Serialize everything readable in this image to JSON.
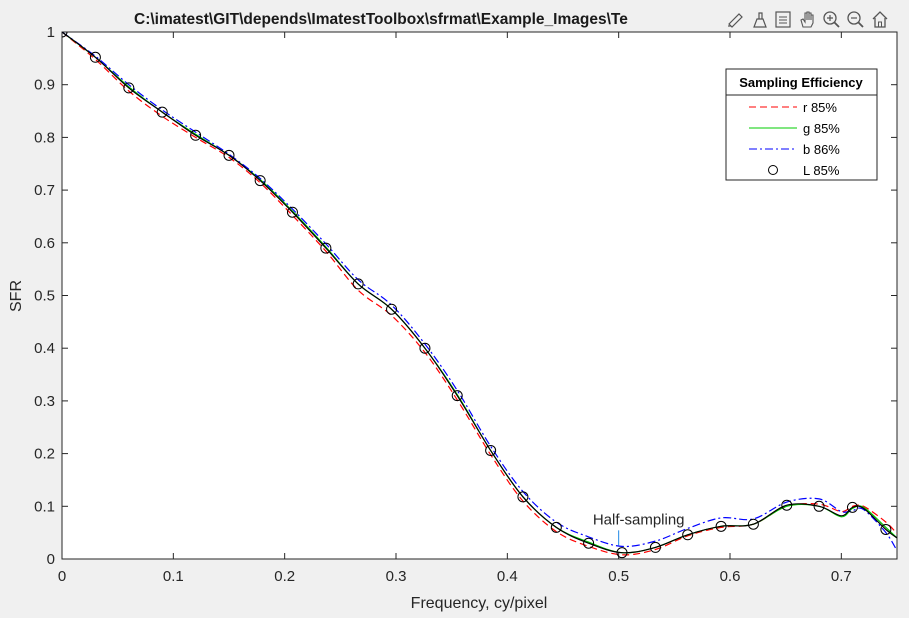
{
  "figure": {
    "title": "C:\\imatest\\GIT\\depends\\ImatestToolbox\\sfrmat\\Example_Images\\Te",
    "toolbar_icons": [
      "brush-icon",
      "datatip-icon",
      "legend-toggle-icon",
      "pan-icon",
      "zoom-in-icon",
      "zoom-out-icon",
      "home-icon"
    ]
  },
  "chart_data": {
    "type": "line",
    "title": "C:\\imatest\\GIT\\depends\\ImatestToolbox\\sfrmat\\Example_Images\\Te",
    "xlabel": "Frequency, cy/pixel",
    "ylabel": "SFR",
    "xlim": [
      0,
      0.75
    ],
    "ylim": [
      0,
      1
    ],
    "xticks": [
      "0",
      "0.1",
      "0.2",
      "0.3",
      "0.4",
      "0.5",
      "0.6",
      "0.7"
    ],
    "xtick_values": [
      0,
      0.1,
      0.2,
      0.3,
      0.4,
      0.5,
      0.6,
      0.7
    ],
    "yticks": [
      "0",
      "0.1",
      "0.2",
      "0.3",
      "0.4",
      "0.5",
      "0.6",
      "0.7",
      "0.8",
      "0.9",
      "1"
    ],
    "ytick_values": [
      0,
      0.1,
      0.2,
      0.3,
      0.4,
      0.5,
      0.6,
      0.7,
      0.8,
      0.9,
      1
    ],
    "grid": false,
    "legend": {
      "title": "Sampling Efficiency",
      "placement": "top-right",
      "entries": [
        {
          "label": "r   85%",
          "color": "#ff0000",
          "style": "dashed"
        },
        {
          "label": "g   85%",
          "color": "#00cc00",
          "style": "solid"
        },
        {
          "label": "b   86%",
          "color": "#0000ff",
          "style": "dashdot"
        },
        {
          "label": "L   85%",
          "color": "#000000",
          "style": "circle"
        }
      ]
    },
    "annotation": {
      "text": "Half-sampling",
      "x": 0.5,
      "y": 0.024,
      "color": "#1e88e5"
    },
    "series": [
      {
        "name": "r",
        "color": "#ff0000",
        "style": "dashed",
        "x": [
          0,
          0.03,
          0.06,
          0.09,
          0.12,
          0.15,
          0.178,
          0.207,
          0.237,
          0.266,
          0.296,
          0.326,
          0.355,
          0.385,
          0.414,
          0.444,
          0.473,
          0.503,
          0.533,
          0.562,
          0.592,
          0.621,
          0.651,
          0.68,
          0.7,
          0.71,
          0.72,
          0.74,
          0.75
        ],
        "y": [
          1,
          0.948,
          0.888,
          0.84,
          0.8,
          0.762,
          0.714,
          0.652,
          0.584,
          0.51,
          0.462,
          0.392,
          0.302,
          0.198,
          0.11,
          0.052,
          0.024,
          0.008,
          0.018,
          0.044,
          0.06,
          0.066,
          0.1,
          0.104,
          0.09,
          0.1,
          0.1,
          0.07,
          0.048
        ]
      },
      {
        "name": "g",
        "color": "#00cc00",
        "style": "solid",
        "x": [
          0,
          0.03,
          0.06,
          0.09,
          0.12,
          0.15,
          0.178,
          0.207,
          0.237,
          0.266,
          0.296,
          0.326,
          0.355,
          0.385,
          0.414,
          0.444,
          0.473,
          0.503,
          0.533,
          0.562,
          0.592,
          0.621,
          0.651,
          0.68,
          0.7,
          0.71,
          0.72,
          0.74,
          0.75
        ],
        "y": [
          1,
          0.952,
          0.896,
          0.848,
          0.806,
          0.766,
          0.72,
          0.66,
          0.592,
          0.522,
          0.474,
          0.4,
          0.312,
          0.206,
          0.118,
          0.06,
          0.032,
          0.012,
          0.022,
          0.046,
          0.062,
          0.066,
          0.1,
          0.1,
          0.08,
          0.096,
          0.098,
          0.06,
          0.04
        ]
      },
      {
        "name": "b",
        "color": "#0000ff",
        "style": "dashdot",
        "x": [
          0,
          0.03,
          0.06,
          0.09,
          0.12,
          0.15,
          0.178,
          0.207,
          0.237,
          0.266,
          0.296,
          0.326,
          0.355,
          0.385,
          0.414,
          0.444,
          0.473,
          0.503,
          0.533,
          0.562,
          0.592,
          0.621,
          0.651,
          0.68,
          0.7,
          0.71,
          0.72,
          0.74,
          0.75
        ],
        "y": [
          1,
          0.954,
          0.9,
          0.852,
          0.81,
          0.768,
          0.722,
          0.664,
          0.598,
          0.53,
          0.482,
          0.408,
          0.32,
          0.214,
          0.128,
          0.07,
          0.042,
          0.024,
          0.034,
          0.058,
          0.078,
          0.076,
          0.108,
          0.114,
          0.09,
          0.092,
          0.094,
          0.05,
          0.016
        ]
      },
      {
        "name": "L",
        "color": "#000000",
        "style": "solid-circle",
        "x": [
          0,
          0.03,
          0.06,
          0.09,
          0.12,
          0.15,
          0.178,
          0.207,
          0.237,
          0.266,
          0.296,
          0.326,
          0.355,
          0.385,
          0.414,
          0.444,
          0.473,
          0.503,
          0.533,
          0.562,
          0.592,
          0.621,
          0.651,
          0.68,
          0.7,
          0.71,
          0.72,
          0.74,
          0.75
        ],
        "y": [
          1,
          0.952,
          0.894,
          0.848,
          0.804,
          0.766,
          0.718,
          0.658,
          0.59,
          0.522,
          0.474,
          0.4,
          0.31,
          0.206,
          0.118,
          0.06,
          0.03,
          0.012,
          0.022,
          0.046,
          0.062,
          0.066,
          0.102,
          0.1,
          0.082,
          0.098,
          0.096,
          0.056,
          0.04
        ]
      }
    ],
    "markers": {
      "series": "L",
      "x": [
        0,
        0.03,
        0.06,
        0.09,
        0.12,
        0.15,
        0.178,
        0.207,
        0.237,
        0.266,
        0.296,
        0.326,
        0.355,
        0.385,
        0.414,
        0.444,
        0.473,
        0.503,
        0.533,
        0.562,
        0.592,
        0.621,
        0.651,
        0.68,
        0.71,
        0.74
      ],
      "y": [
        1,
        0.952,
        0.894,
        0.848,
        0.804,
        0.766,
        0.718,
        0.658,
        0.59,
        0.522,
        0.474,
        0.4,
        0.31,
        0.206,
        0.118,
        0.06,
        0.03,
        0.012,
        0.022,
        0.046,
        0.062,
        0.066,
        0.102,
        0.1,
        0.098,
        0.056
      ]
    }
  }
}
